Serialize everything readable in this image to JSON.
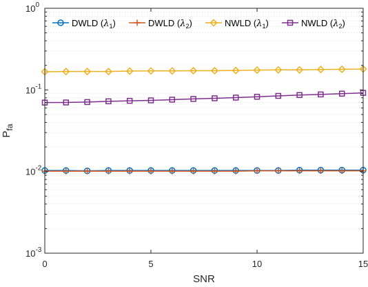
{
  "chart_data": {
    "type": "line",
    "title": "",
    "xlabel": "SNR",
    "ylabel": {
      "main": "P",
      "sub": "fa"
    },
    "xlim": [
      0,
      15
    ],
    "ylim": [
      0.001,
      1
    ],
    "yscale": "log",
    "xticks": [
      0,
      5,
      10,
      15
    ],
    "xtick_labels": [
      "0",
      "5",
      "10",
      "15"
    ],
    "yticks": [
      0.001,
      0.01,
      0.1,
      1
    ],
    "ytick_labels": [
      {
        "base": "10",
        "exp": "-3"
      },
      {
        "base": "10",
        "exp": "-2"
      },
      {
        "base": "10",
        "exp": "-1"
      },
      {
        "base": "10",
        "exp": "0"
      }
    ],
    "grid": "minor dotted",
    "legend_position": "top",
    "x": [
      0,
      1,
      2,
      3,
      4,
      5,
      6,
      7,
      8,
      9,
      10,
      11,
      12,
      13,
      14,
      15
    ],
    "series": [
      {
        "name": {
          "main": "DWLD (",
          "sym": "λ",
          "sub": "1",
          "close": ")"
        },
        "color": "#0072BD",
        "marker": "circle",
        "values": [
          0.0103,
          0.0103,
          0.0102,
          0.0103,
          0.0103,
          0.0103,
          0.0103,
          0.0103,
          0.0103,
          0.0103,
          0.0103,
          0.0103,
          0.0104,
          0.0104,
          0.0104,
          0.0104
        ]
      },
      {
        "name": {
          "main": "DWLD (",
          "sym": "λ",
          "sub": "2",
          "close": ")"
        },
        "color": "#D95319",
        "marker": "plus",
        "values": [
          0.0101,
          0.0101,
          0.0101,
          0.0101,
          0.0101,
          0.0101,
          0.0101,
          0.0101,
          0.0101,
          0.0101,
          0.0102,
          0.0102,
          0.0102,
          0.0102,
          0.0102,
          0.0102
        ]
      },
      {
        "name": {
          "main": "NWLD (",
          "sym": "λ",
          "sub": "1",
          "close": ")"
        },
        "color": "#EDB120",
        "marker": "diamond",
        "values": [
          0.167,
          0.168,
          0.168,
          0.168,
          0.17,
          0.171,
          0.171,
          0.172,
          0.172,
          0.173,
          0.175,
          0.176,
          0.176,
          0.178,
          0.179,
          0.18
        ]
      },
      {
        "name": {
          "main": "NWLD (",
          "sym": "λ",
          "sub": "2",
          "close": ")"
        },
        "color": "#7E2F8E",
        "marker": "square",
        "values": [
          0.07,
          0.0702,
          0.071,
          0.0725,
          0.0735,
          0.0745,
          0.076,
          0.0775,
          0.079,
          0.0805,
          0.0825,
          0.0845,
          0.0865,
          0.088,
          0.09,
          0.092
        ]
      }
    ]
  }
}
